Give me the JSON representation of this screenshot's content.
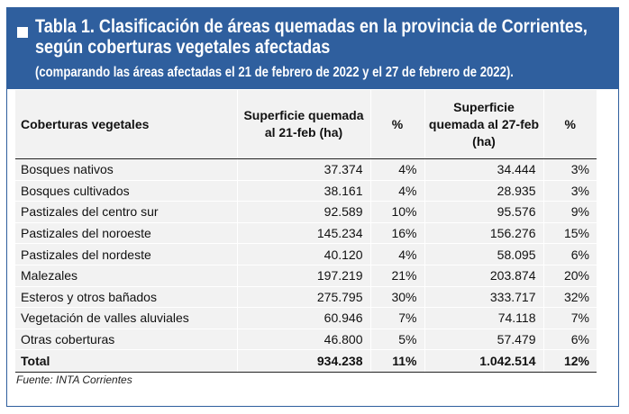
{
  "header": {
    "title": "Tabla 1. Clasificación de áreas quemadas en la provincia de Corrientes, según coberturas vegetales afectadas",
    "subtitle": "(comparando las áreas afectadas el 21 de febrero de 2022 y el 27 de febrero de 2022).",
    "accent_color": "#2f5f9e"
  },
  "table": {
    "columns": [
      "Coberturas vegetales",
      "Superficie quemada al 21-feb (ha)",
      "%",
      "Superficie quemada al 27-feb (ha)",
      "%"
    ],
    "rows": [
      [
        "Bosques nativos",
        "37.374",
        "4%",
        "34.444",
        "3%"
      ],
      [
        "Bosques cultivados",
        "38.161",
        "4%",
        "28.935",
        "3%"
      ],
      [
        "Pastizales del centro sur",
        "92.589",
        "10%",
        "95.576",
        "9%"
      ],
      [
        "Pastizales del noroeste",
        "145.234",
        "16%",
        "156.276",
        "15%"
      ],
      [
        "Pastizales del nordeste",
        "40.120",
        "4%",
        "58.095",
        "6%"
      ],
      [
        "Malezales",
        "197.219",
        "21%",
        "203.874",
        "20%"
      ],
      [
        "Esteros y otros bañados",
        "275.795",
        "30%",
        "333.717",
        "32%"
      ],
      [
        "Vegetación de valles aluviales",
        "60.946",
        "7%",
        "74.118",
        "7%"
      ],
      [
        "Otras coberturas",
        "46.800",
        "5%",
        "57.479",
        "6%"
      ]
    ],
    "total": [
      "Total",
      "934.238",
      "11%",
      "1.042.514",
      "12%"
    ]
  },
  "footer": {
    "source": "Fuente: INTA Corrientes"
  }
}
